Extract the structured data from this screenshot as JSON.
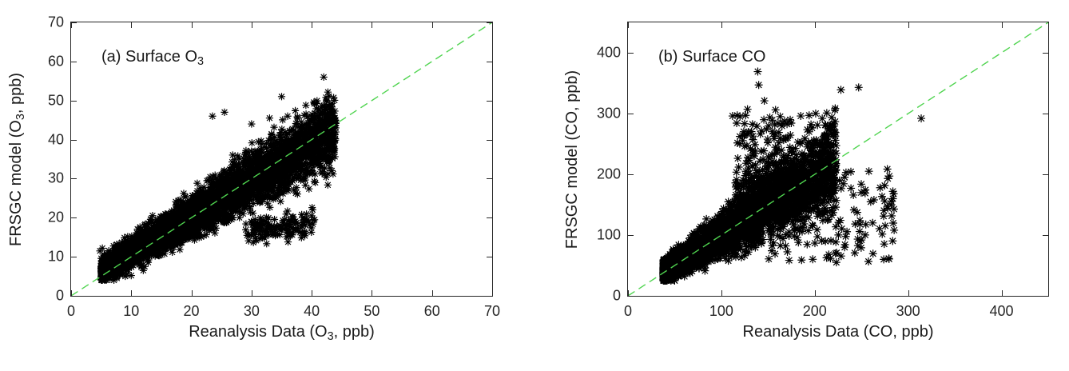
{
  "figure": {
    "background": "#ffffff",
    "axis_color": "#262626",
    "text_color": "#1a1a1a"
  },
  "chart_data": [
    {
      "panel": "a",
      "type": "scatter",
      "title_parts": {
        "pre": "(a) Surface O",
        "sub": "3",
        "post": ""
      },
      "xlabel_parts": {
        "pre": "Reanalysis Data (O",
        "sub": "3",
        "post": ", ppb)"
      },
      "ylabel_parts": {
        "pre": "FRSGC model (O",
        "sub": "3",
        "post": ", ppb)"
      },
      "xlim": [
        0,
        70
      ],
      "ylim": [
        0,
        70
      ],
      "xticks": [
        0,
        10,
        20,
        30,
        40,
        50,
        60,
        70
      ],
      "yticks": [
        0,
        10,
        20,
        30,
        40,
        50,
        60,
        70
      ],
      "grid": false,
      "box": true,
      "tick_dir": "in",
      "tick_len": 7,
      "axis_color": "#262626",
      "identity_line": {
        "from": [
          0,
          0
        ],
        "to": [
          70,
          70
        ],
        "color": "#4fd44f",
        "dash": [
          10,
          6
        ],
        "width": 1.4
      },
      "marker": {
        "shape": "asterisk-8-spoke",
        "color": "#000000",
        "radius": 4.6,
        "line_width": 1.15
      },
      "scatter_generation": {
        "seed": 7,
        "clusters": [
          {
            "n": 4200,
            "x": {
              "min": 5,
              "max": 44,
              "pow": 1.25
            },
            "y": {
              "mode": "linear",
              "slope": 0.93,
              "intercept": 1.8,
              "noise_base": 1.1,
              "noise_slope": 0.085
            },
            "clamp": [
              4,
              57
            ]
          },
          {
            "n": 150,
            "x": {
              "min": 29,
              "max": 40.5,
              "pow": 1.0
            },
            "y": {
              "mode": "linear",
              "slope": 0.22,
              "intercept": 10,
              "noise_base": 1.6,
              "noise_slope": 0
            },
            "clamp": [
              12,
              24
            ]
          }
        ]
      },
      "outlier_points": [
        [
          23.5,
          46
        ],
        [
          25.5,
          47
        ],
        [
          35,
          51
        ],
        [
          42,
          56
        ],
        [
          42.5,
          50
        ],
        [
          43,
          49
        ],
        [
          30,
          44
        ],
        [
          33,
          45.5
        ],
        [
          36,
          46
        ],
        [
          37.5,
          44
        ],
        [
          39.5,
          44
        ],
        [
          40.5,
          43
        ],
        [
          44,
          43
        ],
        [
          4.8,
          11.5
        ],
        [
          5.2,
          12.2
        ],
        [
          8,
          5.5
        ],
        [
          9,
          5
        ],
        [
          10,
          5.2
        ],
        [
          12,
          6.5
        ],
        [
          34,
          17
        ],
        [
          36.5,
          16
        ],
        [
          39.5,
          19
        ],
        [
          40,
          20.5
        ]
      ]
    },
    {
      "panel": "b",
      "type": "scatter",
      "title_parts": {
        "pre": "(b) Surface CO",
        "sub": "",
        "post": ""
      },
      "xlabel_parts": {
        "pre": "Reanalysis Data (CO, ppb)",
        "sub": "",
        "post": ""
      },
      "ylabel_parts": {
        "pre": "FRSGC model (CO, ppb)",
        "sub": "",
        "post": ""
      },
      "xlim": [
        0,
        450
      ],
      "ylim": [
        0,
        450
      ],
      "xticks": [
        0,
        100,
        200,
        300,
        400
      ],
      "yticks": [
        0,
        100,
        200,
        300,
        400
      ],
      "grid": false,
      "box": true,
      "tick_dir": "in",
      "tick_len": 7,
      "axis_color": "#262626",
      "identity_line": {
        "from": [
          0,
          0
        ],
        "to": [
          450,
          450
        ],
        "color": "#4fd44f",
        "dash": [
          10,
          6
        ],
        "width": 1.4
      },
      "marker": {
        "shape": "asterisk-8-spoke",
        "color": "#000000",
        "radius": 5,
        "line_width": 1.2
      },
      "scatter_generation": {
        "seed": 11,
        "clusters": [
          {
            "n": 4200,
            "x": {
              "min": 38,
              "max": 223,
              "pow": 1.9
            },
            "y": {
              "mode": "linear",
              "slope": 0.97,
              "intercept": 3,
              "noise_base": 1.5,
              "noise_slope": 0.16
            },
            "clamp": [
              25,
              378
            ]
          },
          {
            "n": 240,
            "x": {
              "min": 115,
              "max": 178,
              "pow": 1.0
            },
            "y": {
              "mode": "range",
              "min": 155,
              "max": 295,
              "pow": 1.7
            },
            "clamp": [
              0,
              450
            ]
          },
          {
            "n": 150,
            "x": {
              "min": 150,
              "max": 285,
              "pow": 1.15
            },
            "y": {
              "mode": "range",
              "min": 55,
              "max": 215,
              "pow": 1.1
            },
            "clamp": [
              0,
              450
            ]
          }
        ]
      },
      "outlier_points": [
        [
          139,
          369
        ],
        [
          140,
          347
        ],
        [
          146,
          321
        ],
        [
          128,
          307
        ],
        [
          120,
          295
        ],
        [
          126,
          297
        ],
        [
          112,
          296
        ],
        [
          117,
          297
        ],
        [
          158,
          306
        ],
        [
          163,
          295
        ],
        [
          185,
          296
        ],
        [
          194,
          297
        ],
        [
          201,
          300
        ],
        [
          228,
          339
        ],
        [
          247,
          343
        ],
        [
          314,
          292
        ],
        [
          208,
          292
        ],
        [
          203,
          281
        ],
        [
          196,
          282
        ],
        [
          210,
          262
        ],
        [
          222,
          256
        ],
        [
          194,
          270
        ],
        [
          258,
          205
        ],
        [
          270,
          178
        ],
        [
          282,
          150
        ],
        [
          262,
          120
        ],
        [
          285,
          108
        ],
        [
          250,
          92
        ],
        [
          232,
          80
        ],
        [
          215,
          68
        ]
      ]
    }
  ]
}
